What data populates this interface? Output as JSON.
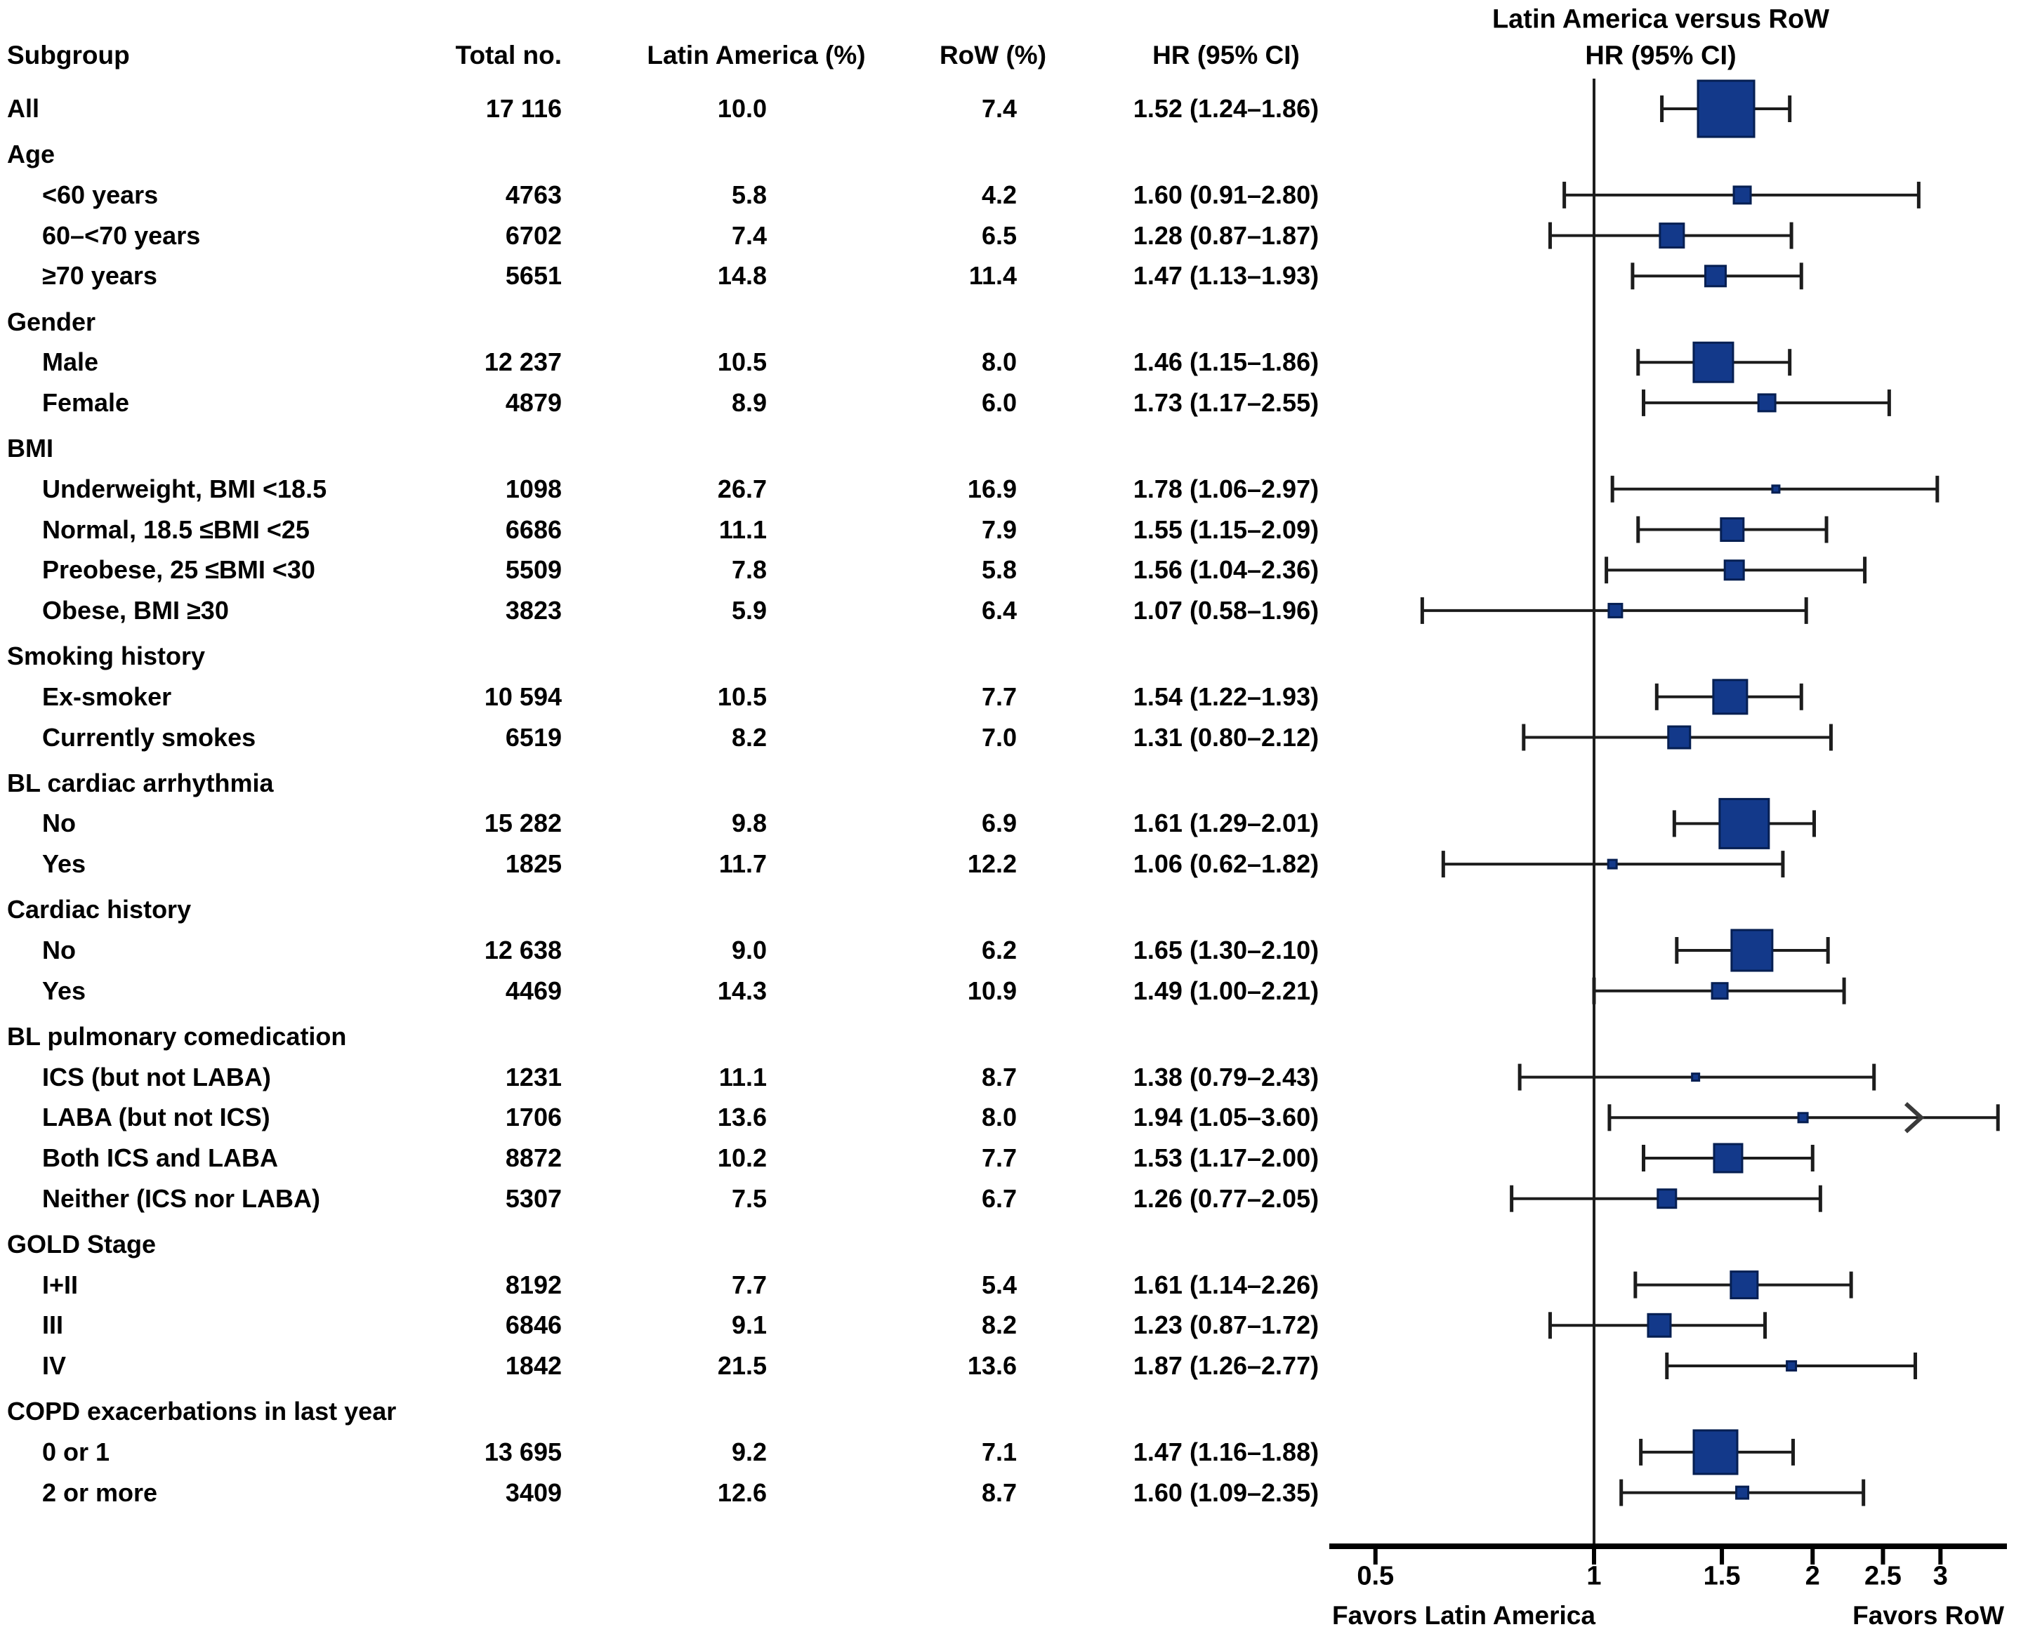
{
  "table_header": {
    "subgroup": "Subgroup",
    "total": "Total no.",
    "latin_america": "Latin America (%)",
    "row": "RoW (%)",
    "hr_ci": "HR (95% CI)"
  },
  "plot": {
    "title_line1": "Latin America versus RoW",
    "title_line2": "HR (95% CI)",
    "favors_left": "Favors Latin America",
    "favors_right": "Favors RoW",
    "axis_tick_labels": [
      "0.5",
      "1",
      "1.5",
      "2",
      "2.5",
      "3"
    ],
    "axis_tick_values": [
      0.5,
      1,
      1.5,
      2,
      2.5,
      3
    ],
    "reference_line_hr": 1,
    "marker_color": "#13398a",
    "marker_border_color": "#061f52",
    "line_color": "#1c1c1c"
  },
  "chart_data": {
    "type": "forest",
    "xscale": "log",
    "xlim": [
      0.43,
      3.7
    ],
    "xlabel_left": "Favors Latin America",
    "xlabel_right": "Favors RoW",
    "title": "Latin America versus RoW HR (95% CI)",
    "rows": [
      {
        "type": "data",
        "label": "All",
        "indent": 0,
        "total": "17 116",
        "la": "10.0",
        "row": "7.4",
        "ci": "1.52 (1.24–1.86)",
        "hr": 1.52,
        "lo": 1.24,
        "hi": 1.86,
        "size": 80
      },
      {
        "type": "section",
        "label": "Age"
      },
      {
        "type": "data",
        "label": "<60 years",
        "indent": 1,
        "total": "4763",
        "la": "5.8",
        "row": "4.2",
        "ci": "1.60 (0.91–2.80)",
        "hr": 1.6,
        "lo": 0.91,
        "hi": 2.8,
        "size": 24
      },
      {
        "type": "data",
        "label": "60–<70 years",
        "indent": 1,
        "total": "6702",
        "la": "7.4",
        "row": "6.5",
        "ci": "1.28 (0.87–1.87)",
        "hr": 1.28,
        "lo": 0.87,
        "hi": 1.87,
        "size": 34
      },
      {
        "type": "data",
        "label": "≥70 years",
        "indent": 1,
        "total": "5651",
        "la": "14.8",
        "row": "11.4",
        "ci": "1.47 (1.13–1.93)",
        "hr": 1.47,
        "lo": 1.13,
        "hi": 1.93,
        "size": 29
      },
      {
        "type": "section",
        "label": "Gender"
      },
      {
        "type": "data",
        "label": "Male",
        "indent": 1,
        "total": "12 237",
        "la": "10.5",
        "row": "8.0",
        "ci": "1.46 (1.15–1.86)",
        "hr": 1.46,
        "lo": 1.15,
        "hi": 1.86,
        "size": 56
      },
      {
        "type": "data",
        "label": "Female",
        "indent": 1,
        "total": "4879",
        "la": "8.9",
        "row": "6.0",
        "ci": "1.73 (1.17–2.55)",
        "hr": 1.73,
        "lo": 1.17,
        "hi": 2.55,
        "size": 24
      },
      {
        "type": "section",
        "label": "BMI"
      },
      {
        "type": "data",
        "label": "Underweight, BMI <18.5",
        "indent": 1,
        "total": "1098",
        "la": "26.7",
        "row": "16.9",
        "ci": "1.78 (1.06–2.97)",
        "hr": 1.78,
        "lo": 1.06,
        "hi": 2.97,
        "size": 10
      },
      {
        "type": "data",
        "label": "Normal, 18.5 ≤BMI <25",
        "indent": 1,
        "total": "6686",
        "la": "11.1",
        "row": "7.9",
        "ci": "1.55 (1.15–2.09)",
        "hr": 1.55,
        "lo": 1.15,
        "hi": 2.09,
        "size": 32
      },
      {
        "type": "data",
        "label": "Preobese, 25 ≤BMI <30",
        "indent": 1,
        "total": "5509",
        "la": "7.8",
        "row": "5.8",
        "ci": "1.56 (1.04–2.36)",
        "hr": 1.56,
        "lo": 1.04,
        "hi": 2.36,
        "size": 27
      },
      {
        "type": "data",
        "label": "Obese, BMI ≥30",
        "indent": 1,
        "total": "3823",
        "la": "5.9",
        "row": "6.4",
        "ci": "1.07 (0.58–1.96)",
        "hr": 1.07,
        "lo": 0.58,
        "hi": 1.96,
        "size": 19
      },
      {
        "type": "section",
        "label": "Smoking history"
      },
      {
        "type": "data",
        "label": "Ex-smoker",
        "indent": 1,
        "total": "10 594",
        "la": "10.5",
        "row": "7.7",
        "ci": "1.54 (1.22–1.93)",
        "hr": 1.54,
        "lo": 1.22,
        "hi": 1.93,
        "size": 48
      },
      {
        "type": "data",
        "label": "Currently smokes",
        "indent": 1,
        "total": "6519",
        "la": "8.2",
        "row": "7.0",
        "ci": "1.31 (0.80–2.12)",
        "hr": 1.31,
        "lo": 0.8,
        "hi": 2.12,
        "size": 31
      },
      {
        "type": "section",
        "label": "BL cardiac arrhythmia"
      },
      {
        "type": "data",
        "label": "No",
        "indent": 1,
        "total": "15 282",
        "la": "9.8",
        "row": "6.9",
        "ci": "1.61 (1.29–2.01)",
        "hr": 1.61,
        "lo": 1.29,
        "hi": 2.01,
        "size": 70
      },
      {
        "type": "data",
        "label": "Yes",
        "indent": 1,
        "total": "1825",
        "la": "11.7",
        "row": "12.2",
        "ci": "1.06 (0.62–1.82)",
        "hr": 1.06,
        "lo": 0.62,
        "hi": 1.82,
        "size": 12
      },
      {
        "type": "section",
        "label": "Cardiac history"
      },
      {
        "type": "data",
        "label": "No",
        "indent": 1,
        "total": "12 638",
        "la": "9.0",
        "row": "6.2",
        "ci": "1.65 (1.30–2.10)",
        "hr": 1.65,
        "lo": 1.3,
        "hi": 2.1,
        "size": 58
      },
      {
        "type": "data",
        "label": "Yes",
        "indent": 1,
        "total": "4469",
        "la": "14.3",
        "row": "10.9",
        "ci": "1.49 (1.00–2.21)",
        "hr": 1.49,
        "lo": 1.0,
        "hi": 2.21,
        "size": 22
      },
      {
        "type": "section",
        "label": "BL pulmonary comedication"
      },
      {
        "type": "data",
        "label": "ICS (but not LABA)",
        "indent": 1,
        "total": "1231",
        "la": "11.1",
        "row": "8.7",
        "ci": "1.38 (0.79–2.43)",
        "hr": 1.38,
        "lo": 0.79,
        "hi": 2.43,
        "size": 10
      },
      {
        "type": "data",
        "label": "LABA (but not ICS)",
        "indent": 1,
        "total": "1706",
        "la": "13.6",
        "row": "8.0",
        "ci": "1.94 (1.05–3.60)",
        "hr": 1.94,
        "lo": 1.05,
        "hi": 3.6,
        "size": 13,
        "arrow": true
      },
      {
        "type": "data",
        "label": "Both ICS and LABA",
        "indent": 1,
        "total": "8872",
        "la": "10.2",
        "row": "7.7",
        "ci": "1.53 (1.17–2.00)",
        "hr": 1.53,
        "lo": 1.17,
        "hi": 2.0,
        "size": 40
      },
      {
        "type": "data",
        "label": "Neither (ICS nor LABA)",
        "indent": 1,
        "total": "5307",
        "la": "7.5",
        "row": "6.7",
        "ci": "1.26 (0.77–2.05)",
        "hr": 1.26,
        "lo": 0.77,
        "hi": 2.05,
        "size": 26
      },
      {
        "type": "section",
        "label": "GOLD Stage"
      },
      {
        "type": "data",
        "label": "I+II",
        "indent": 1,
        "total": "8192",
        "la": "7.7",
        "row": "5.4",
        "ci": "1.61 (1.14–2.26)",
        "hr": 1.61,
        "lo": 1.14,
        "hi": 2.26,
        "size": 38
      },
      {
        "type": "data",
        "label": "III",
        "indent": 1,
        "total": "6846",
        "la": "9.1",
        "row": "8.2",
        "ci": "1.23 (0.87–1.72)",
        "hr": 1.23,
        "lo": 0.87,
        "hi": 1.72,
        "size": 32
      },
      {
        "type": "data",
        "label": "IV",
        "indent": 1,
        "total": "1842",
        "la": "21.5",
        "row": "13.6",
        "ci": "1.87 (1.26–2.77)",
        "hr": 1.87,
        "lo": 1.26,
        "hi": 2.77,
        "size": 13
      },
      {
        "type": "section",
        "label": "COPD exacerbations in last year"
      },
      {
        "type": "data",
        "label": "0 or 1",
        "indent": 1,
        "total": "13 695",
        "la": "9.2",
        "row": "7.1",
        "ci": "1.47 (1.16–1.88)",
        "hr": 1.47,
        "lo": 1.16,
        "hi": 1.88,
        "size": 62
      },
      {
        "type": "data",
        "label": "2 or more",
        "indent": 1,
        "total": "3409",
        "la": "12.6",
        "row": "8.7",
        "ci": "1.60 (1.09–2.35)",
        "hr": 1.6,
        "lo": 1.09,
        "hi": 2.35,
        "size": 17
      }
    ]
  }
}
